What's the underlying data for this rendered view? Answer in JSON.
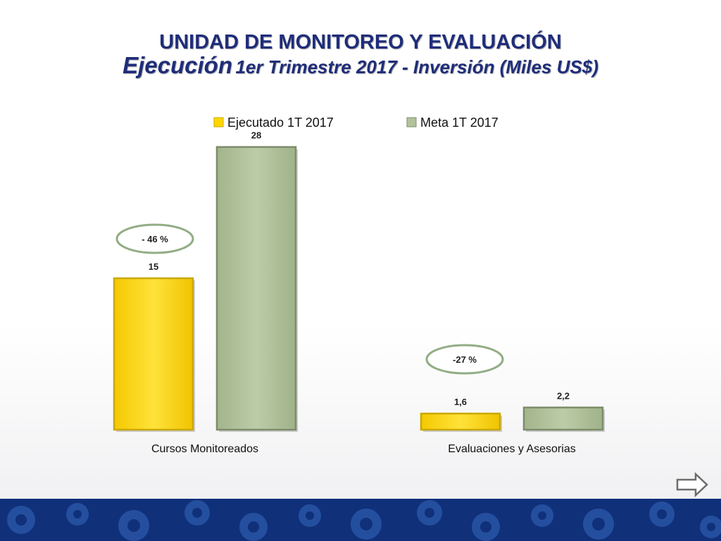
{
  "title": "UNIDAD DE MONITOREO Y EVALUACIÓN",
  "subtitle_main": "Ejecución",
  "subtitle_rest": "1er Trimestre 2017 - Inversión (Miles US$)",
  "colors": {
    "title": "#1f2d7a",
    "executed": "#ffd700",
    "executed_dark": "#c9a800",
    "goal": "#b2c39c",
    "goal_dark": "#7d8c6a",
    "ellipse": "#92ad85",
    "footer": "#10307a"
  },
  "chart_data": {
    "type": "bar",
    "title": "",
    "xlabel": "",
    "ylabel": "",
    "ylim": [
      0,
      30
    ],
    "grid": false,
    "legend_position": "top",
    "categories": [
      "Cursos Monitoreados",
      "Evaluaciones y Asesorias"
    ],
    "series": [
      {
        "name": "Ejecutado 1T 2017",
        "values": [
          15,
          1.6
        ],
        "labels": [
          "15",
          "1,6"
        ]
      },
      {
        "name": "Meta 1T 2017",
        "values": [
          28,
          2.2
        ],
        "labels": [
          "28",
          "2,2"
        ]
      }
    ],
    "annotations": [
      "- 46 %",
      "-27 %"
    ]
  }
}
